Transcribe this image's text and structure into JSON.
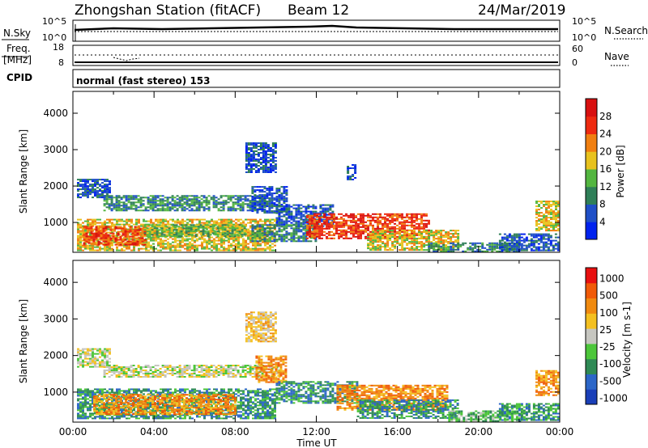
{
  "header": {
    "title": "Zhongshan Station (fitACF)",
    "beam": "Beam 12",
    "date": "24/Mar/2019"
  },
  "noise_panel": {
    "left_label": "N.Sky",
    "right_label": "N.Search",
    "left_ticks": [
      "10^5",
      "10^0"
    ],
    "right_ticks": [
      "10^5",
      "10^0"
    ]
  },
  "freq_panel": {
    "left_label_top": "Freq.",
    "left_label_bottom": "[MHz]",
    "right_label": "Nave",
    "left_ticks": [
      "18",
      "8"
    ],
    "right_ticks": [
      "60",
      "0"
    ]
  },
  "cpid": {
    "label": "CPID",
    "value": "normal (fast stereo) 153"
  },
  "x_axis": {
    "label": "Time UT",
    "ticks": [
      "00:00",
      "04:00",
      "08:00",
      "12:00",
      "16:00",
      "20:00",
      "00:00"
    ]
  },
  "chart_data": [
    {
      "type": "heatmap",
      "title": "",
      "xlabel": "Time UT",
      "ylabel": "Slant Range [km]",
      "ylim": [
        180,
        4600
      ],
      "xlim_hours": [
        0,
        24
      ],
      "y_ticks": [
        "1000",
        "2000",
        "3000",
        "4000"
      ],
      "colorbar": {
        "label": "Power [dB]",
        "ticks": [
          "4",
          "8",
          "12",
          "16",
          "20",
          "24",
          "28"
        ],
        "colors": [
          "#0022ee",
          "#1f4fc7",
          "#2f7f58",
          "#53b640",
          "#e8c21e",
          "#f07f10",
          "#ee2a10",
          "#d81010"
        ]
      },
      "regions": [
        {
          "t0": 0.2,
          "t1": 1.8,
          "r0": 1700,
          "r1": 2200,
          "level": 1
        },
        {
          "t0": 1.5,
          "t1": 9.5,
          "r0": 1350,
          "r1": 1750,
          "level": 2
        },
        {
          "t0": 8.8,
          "t1": 10.5,
          "r0": 1250,
          "r1": 2000,
          "level": 1
        },
        {
          "t0": 10.0,
          "t1": 12.8,
          "r0": 900,
          "r1": 1500,
          "level": 1
        },
        {
          "t0": 0.2,
          "t1": 10.0,
          "r0": 250,
          "r1": 1100,
          "level": 4
        },
        {
          "t0": 0.5,
          "t1": 3.5,
          "r0": 400,
          "r1": 900,
          "level": 6
        },
        {
          "t0": 3.5,
          "t1": 8.5,
          "r0": 600,
          "r1": 950,
          "level": 3
        },
        {
          "t0": 8.8,
          "t1": 12.0,
          "r0": 500,
          "r1": 950,
          "level": 2
        },
        {
          "t0": 11.5,
          "t1": 17.5,
          "r0": 550,
          "r1": 1250,
          "level": 6
        },
        {
          "t0": 14.5,
          "t1": 19.0,
          "r0": 250,
          "r1": 800,
          "level": 4
        },
        {
          "t0": 17.5,
          "t1": 22.0,
          "r0": 200,
          "r1": 450,
          "level": 2
        },
        {
          "t0": 22.8,
          "t1": 23.9,
          "r0": 800,
          "r1": 1600,
          "level": 4
        },
        {
          "t0": 21.0,
          "t1": 23.9,
          "r0": 220,
          "r1": 700,
          "level": 1
        },
        {
          "t0": 8.5,
          "t1": 10.0,
          "r0": 2400,
          "r1": 3200,
          "level": 1
        },
        {
          "t0": 13.5,
          "t1": 13.9,
          "r0": 2200,
          "r1": 2600,
          "level": 1
        }
      ]
    },
    {
      "type": "heatmap",
      "title": "",
      "xlabel": "Time UT",
      "ylabel": "Slant Range [km]",
      "ylim": [
        180,
        4600
      ],
      "xlim_hours": [
        0,
        24
      ],
      "y_ticks": [
        "1000",
        "2000",
        "3000",
        "4000"
      ],
      "colorbar": {
        "label": "Velocity [m s-1]",
        "ticks": [
          "1000",
          "500",
          "100",
          "25",
          "-25",
          "-100",
          "-500",
          "-1000"
        ],
        "colors": [
          "#1a3fb8",
          "#2c66c8",
          "#2f8a55",
          "#4cc63a",
          "#c6c6c0",
          "#f4c020",
          "#f08a10",
          "#f05a08",
          "#e81010"
        ]
      },
      "regions": [
        {
          "t0": 0.2,
          "t1": 1.8,
          "r0": 1700,
          "r1": 2200,
          "level": 4
        },
        {
          "t0": 1.5,
          "t1": 10.2,
          "r0": 1400,
          "r1": 1750,
          "level": 4
        },
        {
          "t0": 9.0,
          "t1": 10.5,
          "r0": 1250,
          "r1": 2000,
          "level": 6
        },
        {
          "t0": 0.2,
          "t1": 10.0,
          "r0": 280,
          "r1": 1100,
          "level": 2
        },
        {
          "t0": 1.0,
          "t1": 8.0,
          "r0": 400,
          "r1": 950,
          "level": 6
        },
        {
          "t0": 10.0,
          "t1": 14.0,
          "r0": 700,
          "r1": 1300,
          "level": 2
        },
        {
          "t0": 13.0,
          "t1": 18.5,
          "r0": 500,
          "r1": 1200,
          "level": 6
        },
        {
          "t0": 14.0,
          "t1": 19.0,
          "r0": 300,
          "r1": 800,
          "level": 2
        },
        {
          "t0": 18.5,
          "t1": 22.0,
          "r0": 220,
          "r1": 500,
          "level": 3
        },
        {
          "t0": 22.8,
          "t1": 23.9,
          "r0": 900,
          "r1": 1600,
          "level": 6
        },
        {
          "t0": 21.0,
          "t1": 23.9,
          "r0": 220,
          "r1": 700,
          "level": 2
        },
        {
          "t0": 8.5,
          "t1": 10.0,
          "r0": 2400,
          "r1": 3200,
          "level": 5
        }
      ]
    }
  ]
}
